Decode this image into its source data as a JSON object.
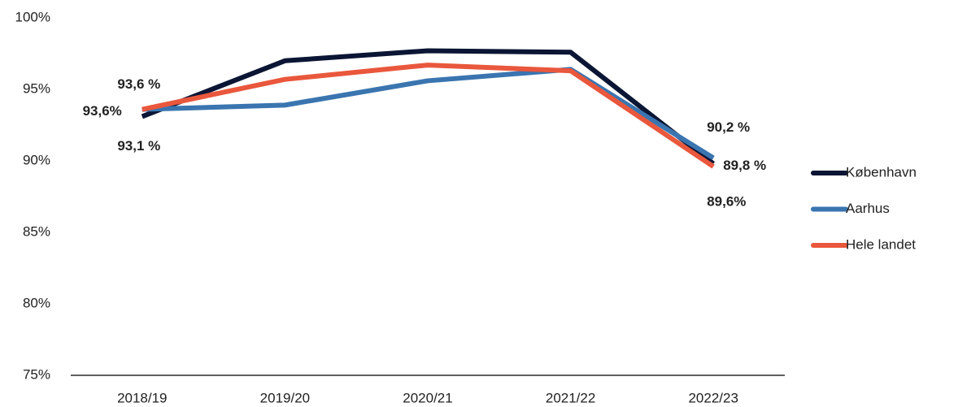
{
  "chart_data": {
    "type": "line",
    "categories": [
      "2018/19",
      "2019/20",
      "2020/21",
      "2021/22",
      "2022/23"
    ],
    "series": [
      {
        "name": "København",
        "color": "#0b1534",
        "values": [
          93.1,
          97.0,
          97.7,
          97.6,
          89.8
        ],
        "value_labels": [
          "93,1 %",
          null,
          null,
          null,
          "89,8 %"
        ]
      },
      {
        "name": "Aarhus",
        "color": "#3a75b0",
        "values": [
          93.6,
          93.9,
          95.6,
          96.4,
          90.2
        ],
        "value_labels": [
          "93,6 %",
          null,
          null,
          null,
          "90,2 %"
        ]
      },
      {
        "name": "Hele landet",
        "color": "#e9573c",
        "values": [
          93.6,
          95.7,
          96.7,
          96.3,
          89.6
        ],
        "value_labels": [
          "93,6%",
          null,
          null,
          null,
          "89,6%"
        ]
      }
    ],
    "ylim": [
      75,
      100
    ],
    "yticks": [
      {
        "value": 75,
        "label": "75%"
      },
      {
        "value": 80,
        "label": "80%"
      },
      {
        "value": 85,
        "label": "85%"
      },
      {
        "value": 90,
        "label": "90%"
      },
      {
        "value": 95,
        "label": "95%"
      },
      {
        "value": 100,
        "label": "100%"
      }
    ],
    "grid": false,
    "legend": "right"
  }
}
